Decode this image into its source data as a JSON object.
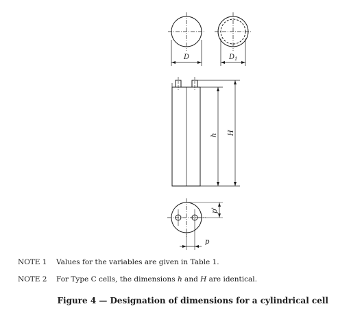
{
  "labels": {
    "D": "D",
    "D1_main": "D",
    "D1_sub": "1",
    "h": "h",
    "H": "H",
    "p_prime": "p'",
    "p": "p"
  },
  "notes": [
    {
      "label": "NOTE 1",
      "text": "Values for the variables are given in Table 1."
    },
    {
      "label": "NOTE 2",
      "text_before": "For Type C cells, the dimensions ",
      "h": "h",
      "mid": " and ",
      "H": "H",
      "text_after": " are identical."
    }
  ],
  "caption": "Figure 4 — Designation of dimensions for a cylindrical cell"
}
